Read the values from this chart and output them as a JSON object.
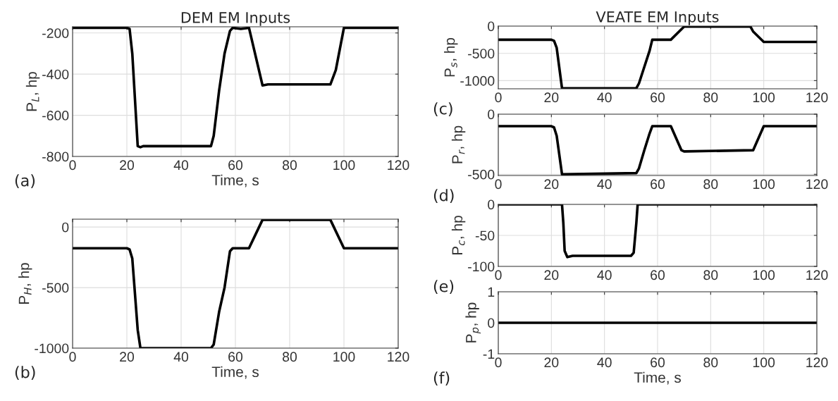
{
  "chart_data": [
    {
      "type": "line",
      "title": "DEM EM Inputs",
      "xlabel": "Time, s",
      "ylabel": "P$_{L}$, hp",
      "annotations": [
        "(a)"
      ],
      "grid": true,
      "legend": false,
      "line_style": "solid",
      "xlim": [
        0,
        120
      ],
      "xticks": [
        0,
        20,
        40,
        60,
        80,
        100,
        120
      ],
      "ylim": [
        -800,
        -170
      ],
      "yticks": [
        -800,
        -600,
        -400,
        -200
      ],
      "series": [
        {
          "color": "#000000",
          "x": [
            0,
            20,
            21,
            22,
            24,
            25,
            26,
            51,
            52,
            54,
            56,
            58,
            59,
            62,
            65,
            70,
            72,
            95,
            97,
            100,
            120
          ],
          "values": [
            -175,
            -175,
            -180,
            -300,
            -750,
            -755,
            -750,
            -750,
            -700,
            -480,
            -300,
            -190,
            -175,
            -180,
            -175,
            -455,
            -450,
            -450,
            -380,
            -175,
            -175
          ]
        }
      ]
    },
    {
      "type": "line",
      "xlabel": "Time, s",
      "ylabel": "P$_{H}$, hp",
      "annotations": [
        "(b)"
      ],
      "grid": true,
      "legend": false,
      "line_style": "solid",
      "xlim": [
        0,
        120
      ],
      "xticks": [
        0,
        20,
        40,
        60,
        80,
        100,
        120
      ],
      "ylim": [
        -1000,
        65
      ],
      "yticks": [
        -1000,
        -500,
        0
      ],
      "series": [
        {
          "color": "#000000",
          "x": [
            0,
            20,
            21,
            22,
            24,
            25,
            51,
            52,
            54,
            56,
            57,
            58,
            59,
            65,
            70,
            95,
            100,
            120
          ],
          "values": [
            -175,
            -175,
            -185,
            -260,
            -850,
            -1000,
            -1000,
            -970,
            -700,
            -500,
            -350,
            -200,
            -175,
            -175,
            60,
            60,
            -175,
            -175
          ]
        }
      ]
    },
    {
      "type": "line",
      "title": "VEATE EM Inputs",
      "ylabel": "P$_{s}$, hp",
      "annotations": [
        "(c)"
      ],
      "grid": true,
      "legend": false,
      "line_style": "solid",
      "xlim": [
        0,
        120
      ],
      "xticks": [
        0,
        20,
        40,
        60,
        80,
        100,
        120
      ],
      "ylim": [
        -1150,
        0
      ],
      "yticks": [
        -1000,
        -500,
        0
      ],
      "series": [
        {
          "color": "#000000",
          "x": [
            0,
            20,
            21,
            22,
            24,
            52,
            53,
            55,
            57,
            58,
            65,
            70,
            95,
            96,
            100,
            120
          ],
          "values": [
            -250,
            -250,
            -270,
            -400,
            -1140,
            -1140,
            -1050,
            -750,
            -450,
            -250,
            -250,
            -10,
            -10,
            -100,
            -290,
            -290
          ]
        }
      ]
    },
    {
      "type": "line",
      "ylabel": "P$_{r}$, hp",
      "annotations": [
        "(d)"
      ],
      "grid": true,
      "legend": false,
      "line_style": "solid",
      "xlim": [
        0,
        120
      ],
      "xticks": [
        0,
        20,
        40,
        60,
        80,
        100,
        120
      ],
      "ylim": [
        -510,
        0
      ],
      "yticks": [
        -500,
        0
      ],
      "series": [
        {
          "color": "#000000",
          "x": [
            0,
            20,
            21,
            22,
            24,
            52,
            53,
            55,
            57,
            58,
            65,
            69,
            70,
            96,
            100,
            120
          ],
          "values": [
            -100,
            -100,
            -110,
            -180,
            -500,
            -490,
            -450,
            -300,
            -160,
            -100,
            -100,
            -300,
            -310,
            -300,
            -100,
            -100
          ]
        }
      ]
    },
    {
      "type": "line",
      "ylabel": "P$_{c}$, hp",
      "annotations": [
        "(e)"
      ],
      "grid": true,
      "legend": false,
      "line_style": "solid",
      "xlim": [
        0,
        120
      ],
      "xticks": [
        0,
        20,
        40,
        60,
        80,
        100,
        120
      ],
      "ylim": [
        -100,
        0
      ],
      "yticks": [
        -100,
        -50,
        0
      ],
      "series": [
        {
          "color": "#000000",
          "x": [
            0,
            24,
            24.5,
            25,
            26,
            28,
            50,
            51,
            52,
            52.5,
            120
          ],
          "values": [
            0,
            0,
            -30,
            -75,
            -85,
            -83,
            -83,
            -78,
            -30,
            0,
            0
          ]
        }
      ]
    },
    {
      "type": "line",
      "xlabel": "Time, s",
      "ylabel": "P$_{p}$, hp",
      "annotations": [
        "(f)"
      ],
      "grid": true,
      "legend": false,
      "line_style": "solid",
      "xlim": [
        0,
        120
      ],
      "xticks": [
        0,
        20,
        40,
        60,
        80,
        100,
        120
      ],
      "ylim": [
        -1,
        1
      ],
      "yticks": [
        -1,
        0,
        1
      ],
      "series": [
        {
          "color": "#000000",
          "x": [
            0,
            120
          ],
          "values": [
            0,
            0
          ]
        }
      ]
    }
  ]
}
